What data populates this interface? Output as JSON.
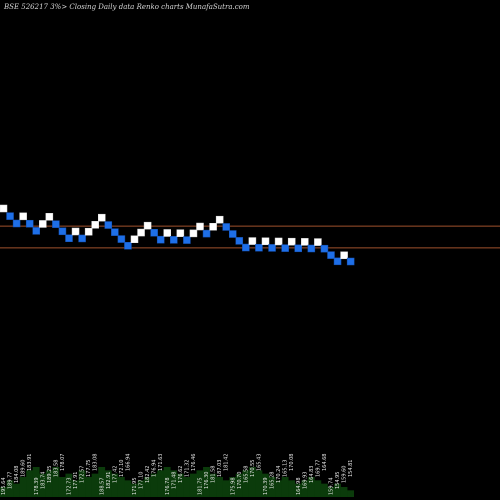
{
  "chart_data": {
    "type": "renko",
    "title": "BSE 526217 3%> Closing Daily data Renko charts MunafaSutra.com",
    "bricks": [
      {
        "d": "up",
        "v": 195.64
      },
      {
        "d": "down",
        "v": 189.77
      },
      {
        "d": "down",
        "v": 184.08
      },
      {
        "d": "up",
        "v": 189.6
      },
      {
        "d": "down",
        "v": 183.91
      },
      {
        "d": "down",
        "v": 178.39
      },
      {
        "d": "up",
        "v": 183.74
      },
      {
        "d": "up",
        "v": 189.25
      },
      {
        "d": "down",
        "v": 183.58
      },
      {
        "d": "down",
        "v": 178.07
      },
      {
        "d": "down",
        "v": 172.73
      },
      {
        "d": "up",
        "v": 177.91
      },
      {
        "d": "down",
        "v": 172.57
      },
      {
        "d": "up",
        "v": 177.75
      },
      {
        "d": "up",
        "v": 183.08
      },
      {
        "d": "up",
        "v": 188.57
      },
      {
        "d": "down",
        "v": 182.91
      },
      {
        "d": "down",
        "v": 177.42
      },
      {
        "d": "down",
        "v": 172.1
      },
      {
        "d": "down",
        "v": 166.94
      },
      {
        "d": "up",
        "v": 171.95
      },
      {
        "d": "up",
        "v": 177.1
      },
      {
        "d": "up",
        "v": 182.42
      },
      {
        "d": "down",
        "v": 176.94
      },
      {
        "d": "down",
        "v": 171.63
      },
      {
        "d": "up",
        "v": 176.78
      },
      {
        "d": "down",
        "v": 171.48
      },
      {
        "d": "up",
        "v": 176.62
      },
      {
        "d": "down",
        "v": 171.32
      },
      {
        "d": "up",
        "v": 176.46
      },
      {
        "d": "up",
        "v": 181.75
      },
      {
        "d": "down",
        "v": 176.3
      },
      {
        "d": "up",
        "v": 181.58
      },
      {
        "d": "up",
        "v": 187.03
      },
      {
        "d": "down",
        "v": 181.42
      },
      {
        "d": "down",
        "v": 175.98
      },
      {
        "d": "down",
        "v": 170.7
      },
      {
        "d": "down",
        "v": 165.58
      },
      {
        "d": "up",
        "v": 170.55
      },
      {
        "d": "down",
        "v": 165.43
      },
      {
        "d": "up",
        "v": 170.39
      },
      {
        "d": "down",
        "v": 165.28
      },
      {
        "d": "up",
        "v": 170.24
      },
      {
        "d": "down",
        "v": 165.13
      },
      {
        "d": "up",
        "v": 170.08
      },
      {
        "d": "down",
        "v": 164.98
      },
      {
        "d": "up",
        "v": 169.93
      },
      {
        "d": "down",
        "v": 164.83
      },
      {
        "d": "up",
        "v": 169.77
      },
      {
        "d": "down",
        "v": 164.68
      },
      {
        "d": "down",
        "v": 159.74
      },
      {
        "d": "down",
        "v": 154.95
      },
      {
        "d": "up",
        "v": 159.6
      },
      {
        "d": "down",
        "v": 154.81
      }
    ],
    "reference_lines": [
      182.1,
      165.3
    ],
    "tick_labels": [
      "195.64",
      "189.77",
      "184.08",
      "189.60",
      "183.91",
      "178.39",
      "183.74",
      "189.25",
      "183.58",
      "178.07",
      "172.73",
      "177.91",
      "172.57",
      "177.75",
      "183.08",
      "188.57",
      "182.91",
      "177.42",
      "172.10",
      "166.94",
      "171.95",
      "177.10",
      "182.42",
      "176.94",
      "171.63",
      "176.78",
      "171.48",
      "176.62",
      "171.32",
      "176.46",
      "181.75",
      "176.30",
      "181.58",
      "187.03",
      "181.42",
      "175.98",
      "170.70",
      "165.58",
      "170.55",
      "165.43",
      "170.39",
      "165.28",
      "170.24",
      "165.13",
      "170.08",
      "164.98",
      "169.93",
      "164.83",
      "169.77",
      "164.68",
      "159.74",
      "154.95",
      "159.60",
      "154.81"
    ],
    "volume": [
      3,
      5,
      4,
      6,
      8,
      9,
      7,
      8,
      9,
      6,
      7,
      5,
      8,
      6,
      7,
      9,
      8,
      7,
      6,
      5,
      4,
      5,
      6,
      7,
      8,
      9,
      8,
      7,
      6,
      7,
      8,
      9,
      7,
      6,
      5,
      6,
      7,
      8,
      9,
      8,
      7,
      6,
      5,
      6,
      5,
      4,
      5,
      6,
      5,
      4,
      3,
      4,
      3,
      2
    ],
    "colors": {
      "up": "#ffffff",
      "down": "#1e6fe8",
      "line": "#a0522d",
      "volume": "#0b3b0b"
    }
  }
}
